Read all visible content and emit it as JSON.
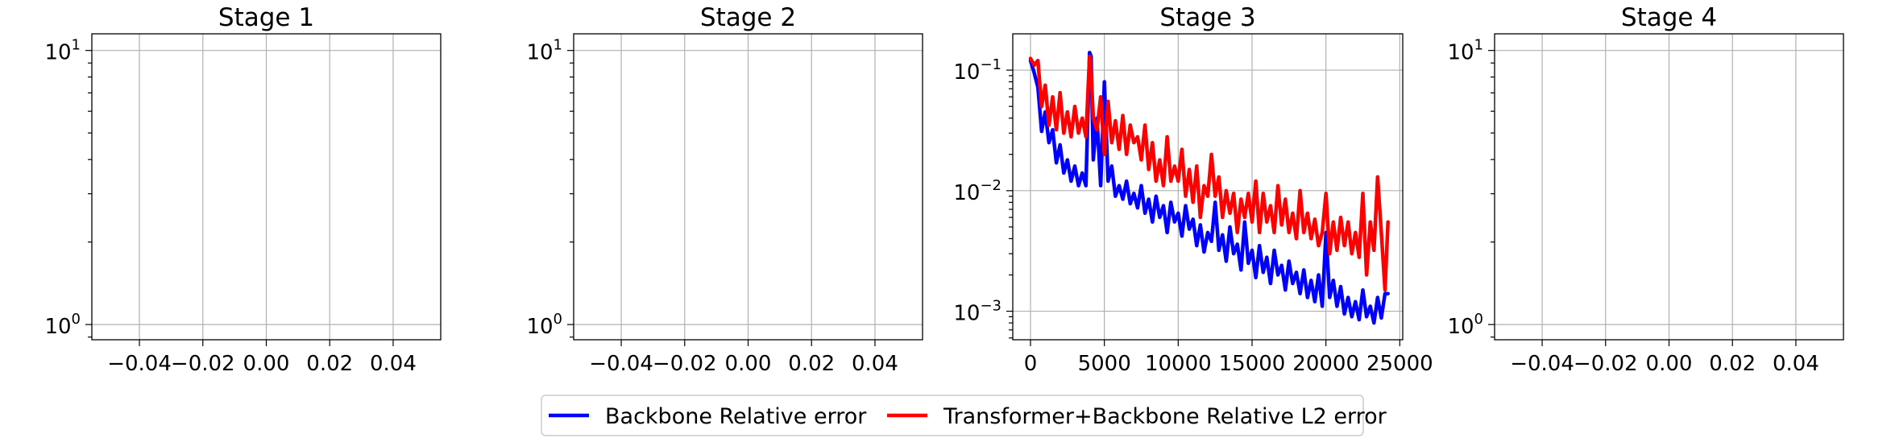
{
  "chart_data": [
    {
      "type": "line",
      "title": "Stage 1",
      "yscale": "log",
      "xlim": [
        -0.055,
        0.055
      ],
      "ylim": [
        0.88,
        11.5
      ],
      "xticks": [
        -0.04,
        -0.02,
        0.0,
        0.02,
        0.04
      ],
      "xtick_labels": [
        "−0.04",
        "−0.02",
        "0.00",
        "0.02",
        "0.04"
      ],
      "yticks": [
        1,
        10
      ],
      "ytick_base": "10",
      "ytick_exps": [
        "0",
        "1"
      ],
      "grid": true,
      "series": []
    },
    {
      "type": "line",
      "title": "Stage 2",
      "yscale": "log",
      "xlim": [
        -0.055,
        0.055
      ],
      "ylim": [
        0.88,
        11.5
      ],
      "xticks": [
        -0.04,
        -0.02,
        0.0,
        0.02,
        0.04
      ],
      "xtick_labels": [
        "−0.04",
        "−0.02",
        "0.00",
        "0.02",
        "0.04"
      ],
      "yticks": [
        1,
        10
      ],
      "ytick_base": "10",
      "ytick_exps": [
        "0",
        "1"
      ],
      "grid": true,
      "series": []
    },
    {
      "type": "line",
      "title": "Stage 3",
      "yscale": "log",
      "xlim": [
        -1200,
        25200
      ],
      "ylim": [
        0.00058,
        0.2
      ],
      "xticks": [
        0,
        5000,
        10000,
        15000,
        20000,
        25000
      ],
      "xtick_labels": [
        "0",
        "5000",
        "10000",
        "15000",
        "20000",
        "25000"
      ],
      "yticks": [
        0.001,
        0.01,
        0.1
      ],
      "ytick_base": "10",
      "ytick_exps": [
        "−3",
        "−2",
        "−1"
      ],
      "grid": true,
      "series": [
        {
          "color": "#0000ff",
          "x": [
            0,
            250,
            500,
            750,
            1000,
            1250,
            1500,
            1750,
            2000,
            2250,
            2500,
            2750,
            3000,
            3250,
            3500,
            3750,
            4000,
            4100,
            4250,
            4500,
            4750,
            5000,
            5250,
            5500,
            5750,
            6000,
            6250,
            6500,
            6750,
            7000,
            7250,
            7500,
            7750,
            8000,
            8250,
            8500,
            8750,
            9000,
            9250,
            9500,
            9750,
            10000,
            10250,
            10500,
            10750,
            11000,
            11250,
            11500,
            11750,
            12000,
            12250,
            12500,
            12750,
            13000,
            13250,
            13500,
            13750,
            14000,
            14250,
            14500,
            14750,
            15000,
            15250,
            15500,
            15750,
            16000,
            16250,
            16500,
            16750,
            17000,
            17250,
            17500,
            17750,
            18000,
            18250,
            18500,
            18750,
            19000,
            19250,
            19500,
            19750,
            20000,
            20250,
            20500,
            20750,
            21000,
            21250,
            21500,
            21750,
            22000,
            22250,
            22500,
            22750,
            23000,
            23250,
            23500,
            23750,
            24000,
            24200
          ],
          "values": [
            0.12,
            0.095,
            0.072,
            0.031,
            0.045,
            0.025,
            0.032,
            0.017,
            0.024,
            0.014,
            0.018,
            0.012,
            0.016,
            0.011,
            0.014,
            0.011,
            0.14,
            0.13,
            0.018,
            0.04,
            0.011,
            0.08,
            0.012,
            0.016,
            0.009,
            0.011,
            0.0085,
            0.012,
            0.0078,
            0.0095,
            0.0072,
            0.011,
            0.0065,
            0.0085,
            0.0055,
            0.009,
            0.006,
            0.0075,
            0.0045,
            0.008,
            0.0055,
            0.0065,
            0.0042,
            0.0075,
            0.0048,
            0.0058,
            0.0035,
            0.0052,
            0.0031,
            0.0045,
            0.0038,
            0.008,
            0.0032,
            0.0043,
            0.0026,
            0.005,
            0.003,
            0.0036,
            0.0022,
            0.0055,
            0.0025,
            0.0032,
            0.0019,
            0.0035,
            0.0021,
            0.0028,
            0.0017,
            0.0032,
            0.002,
            0.0024,
            0.0015,
            0.0026,
            0.0017,
            0.0021,
            0.0014,
            0.0022,
            0.0013,
            0.0018,
            0.0012,
            0.002,
            0.0011,
            0.0045,
            0.0013,
            0.0018,
            0.0011,
            0.0016,
            0.00095,
            0.0013,
            0.0009,
            0.0012,
            0.00085,
            0.0015,
            0.0009,
            0.0011,
            0.0008,
            0.0013,
            0.00088,
            0.0014,
            0.0014
          ]
        },
        {
          "color": "#ff0000",
          "x": [
            0,
            250,
            500,
            750,
            1000,
            1250,
            1500,
            1750,
            2000,
            2250,
            2500,
            2750,
            3000,
            3250,
            3500,
            3750,
            4000,
            4100,
            4250,
            4500,
            4750,
            5000,
            5250,
            5500,
            5750,
            6000,
            6250,
            6500,
            6750,
            7000,
            7250,
            7500,
            7750,
            8000,
            8250,
            8500,
            8750,
            9000,
            9250,
            9500,
            9750,
            10000,
            10250,
            10500,
            10750,
            11000,
            11250,
            11500,
            11750,
            12000,
            12250,
            12500,
            12750,
            13000,
            13250,
            13500,
            13750,
            14000,
            14250,
            14500,
            14750,
            15000,
            15250,
            15500,
            15750,
            16000,
            16250,
            16500,
            16750,
            17000,
            17250,
            17500,
            17750,
            18000,
            18250,
            18500,
            18750,
            19000,
            19250,
            19500,
            19750,
            20000,
            20250,
            20500,
            20750,
            21000,
            21250,
            21500,
            21750,
            22000,
            22250,
            22500,
            22750,
            23000,
            23250,
            23500,
            23750,
            24000,
            24200
          ],
          "values": [
            0.125,
            0.11,
            0.12,
            0.05,
            0.075,
            0.035,
            0.06,
            0.032,
            0.065,
            0.03,
            0.045,
            0.028,
            0.05,
            0.03,
            0.04,
            0.028,
            0.13,
            0.1,
            0.04,
            0.032,
            0.06,
            0.02,
            0.055,
            0.025,
            0.038,
            0.022,
            0.042,
            0.02,
            0.035,
            0.025,
            0.028,
            0.018,
            0.035,
            0.015,
            0.025,
            0.012,
            0.018,
            0.011,
            0.028,
            0.012,
            0.016,
            0.012,
            0.022,
            0.009,
            0.015,
            0.008,
            0.016,
            0.006,
            0.011,
            0.009,
            0.02,
            0.009,
            0.013,
            0.006,
            0.01,
            0.0065,
            0.0095,
            0.0045,
            0.0085,
            0.006,
            0.0095,
            0.0055,
            0.012,
            0.0045,
            0.0095,
            0.0055,
            0.0075,
            0.0045,
            0.011,
            0.0052,
            0.0085,
            0.0045,
            0.0065,
            0.004,
            0.01,
            0.0045,
            0.0065,
            0.004,
            0.0058,
            0.0035,
            0.0045,
            0.0095,
            0.003,
            0.0055,
            0.0032,
            0.006,
            0.0035,
            0.0055,
            0.003,
            0.0045,
            0.0028,
            0.0095,
            0.002,
            0.0055,
            0.0032,
            0.013,
            0.0045,
            0.0015,
            0.0055
          ]
        }
      ]
    },
    {
      "type": "line",
      "title": "Stage 4",
      "yscale": "log",
      "xlim": [
        -0.055,
        0.055
      ],
      "ylim": [
        0.88,
        11.5
      ],
      "xticks": [
        -0.04,
        -0.02,
        0.0,
        0.02,
        0.04
      ],
      "xtick_labels": [
        "−0.04",
        "−0.02",
        "0.00",
        "0.02",
        "0.04"
      ],
      "yticks": [
        1,
        10
      ],
      "ytick_base": "10",
      "ytick_exps": [
        "0",
        "1"
      ],
      "grid": true,
      "series": []
    }
  ],
  "legend": {
    "placement": "bottom-center",
    "entries": [
      {
        "label": "Backbone Relative error",
        "color": "#0000ff"
      },
      {
        "label": "Transformer+Backbone Relative L2 error",
        "color": "#ff0000"
      }
    ]
  }
}
